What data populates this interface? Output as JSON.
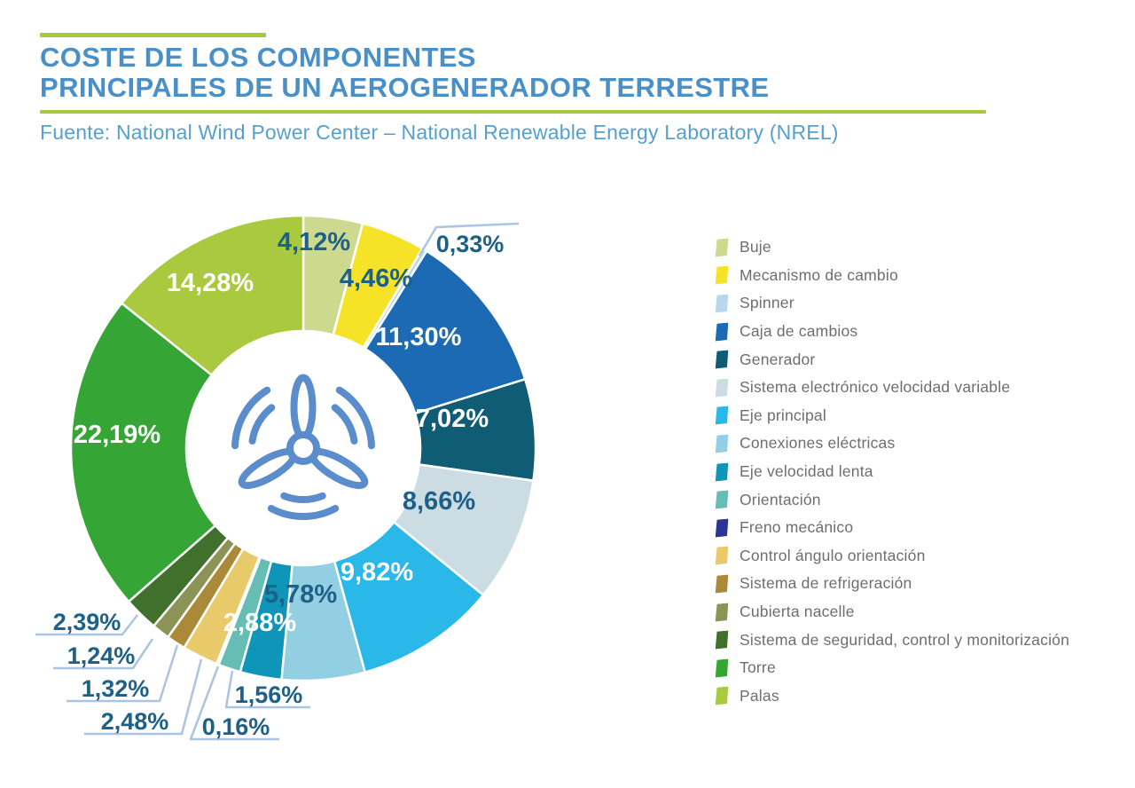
{
  "header": {
    "title_line1": "COSTE DE LOS COMPONENTES",
    "title_line2": "PRINCIPALES DE UN AEROGENERADOR TERRESTRE",
    "source": "Fuente: National Wind Power Center – National Renewable Energy Laboratory (NREL)"
  },
  "style": {
    "title_color": "#4a90c8",
    "source_color": "#57a0ce",
    "accent_green": "#a6c83d",
    "label_dark": "#1d6088",
    "label_light": "#ffffff",
    "leader_line": "#abc4e2",
    "legend_text": "#6d6e70",
    "icon_blue": "#5b8ccb"
  },
  "chart_data": {
    "type": "pie",
    "variant": "donut",
    "start_angle_deg": 0,
    "direction": "clockwise",
    "legend_position": "right",
    "center_icon": "wind-turbine",
    "categories": [
      "Buje",
      "Mecanismo de cambio",
      "Spinner",
      "Caja de cambios",
      "Generador",
      "Sistema electrónico velocidad variable",
      "Eje principal",
      "Conexiones eléctricas",
      "Eje velocidad lenta",
      "Orientación",
      "Freno mecánico",
      "Control ángulo orientación",
      "Sistema de refrigeración",
      "Cubierta nacelle",
      "Sistema de seguridad, control y monitorización",
      "Torre",
      "Palas"
    ],
    "values": [
      4.12,
      4.46,
      0.33,
      11.3,
      7.02,
      8.66,
      9.82,
      5.78,
      2.88,
      1.56,
      0.16,
      2.48,
      1.32,
      1.24,
      2.39,
      22.19,
      14.28
    ],
    "display_labels": [
      "4,12%",
      "4,46%",
      "0,33%",
      "11,30%",
      "7,02%",
      "8,66%",
      "9,82%",
      "5,78%",
      "2,88%",
      "1,56%",
      "0,16%",
      "2,48%",
      "1,32%",
      "1,24%",
      "2,39%",
      "22,19%",
      "14,28%"
    ],
    "colors": [
      "#cdd98e",
      "#f6e327",
      "#b9d6ef",
      "#1b6ab3",
      "#0f5c74",
      "#ccdce3",
      "#29b8e8",
      "#93cfe2",
      "#0e95b7",
      "#65bdb4",
      "#283593",
      "#e9ca6a",
      "#aa8a38",
      "#8b9456",
      "#41702c",
      "#35a535",
      "#a9c93e"
    ]
  }
}
